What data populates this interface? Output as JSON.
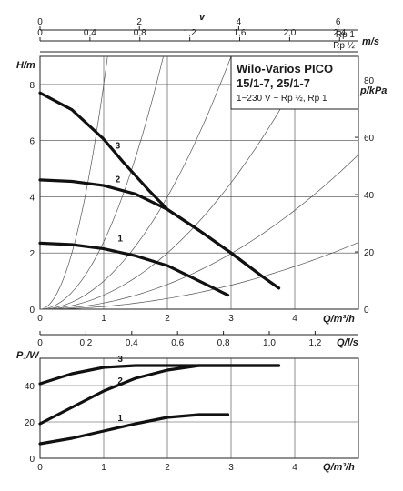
{
  "chart_data": [
    {
      "type": "line",
      "id": "head",
      "title": "Wilo-Varios PICO",
      "title_line2": "15/1-7, 25/1-7",
      "subtitle": "1~230 V ~ Rp ½, Rp 1",
      "xlabel": "Q/m³/h",
      "ylabel": "H/m",
      "ylabel_right": "p/kPa",
      "xlim": [
        0,
        5
      ],
      "ylim": [
        0,
        9
      ],
      "x_ticks": [
        "0",
        "1",
        "2",
        "3",
        "4"
      ],
      "y_ticks": [
        "0",
        "2",
        "4",
        "6",
        "8"
      ],
      "y_right_ticks": [
        "0",
        "20",
        "40",
        "60",
        "80"
      ],
      "grid": true,
      "series": [
        {
          "name": "1",
          "x": [
            0,
            0.5,
            1.0,
            1.5,
            2.0,
            2.5,
            2.95
          ],
          "y": [
            2.35,
            2.3,
            2.15,
            1.9,
            1.55,
            1.0,
            0.5
          ]
        },
        {
          "name": "2",
          "x": [
            0,
            0.5,
            1.0,
            1.5,
            2.0,
            2.5,
            3.0,
            3.5,
            3.75
          ],
          "y": [
            4.6,
            4.55,
            4.4,
            4.1,
            3.55,
            2.8,
            2.0,
            1.15,
            0.75
          ]
        },
        {
          "name": "3",
          "x": [
            0,
            0.5,
            1.0,
            1.3,
            1.7,
            2.0,
            2.5,
            3.0,
            3.5,
            3.75
          ],
          "y": [
            7.7,
            7.1,
            6.05,
            5.25,
            4.25,
            3.55,
            2.8,
            2.0,
            1.15,
            0.75
          ]
        }
      ],
      "system_curve_coefficients": [
        8.0,
        2.4,
        1.0,
        0.5,
        0.22,
        0.095
      ]
    },
    {
      "type": "line",
      "id": "power",
      "xlabel": "Q/m³/h",
      "ylabel": "P₁/W",
      "xlim": [
        0,
        5
      ],
      "ylim": [
        0,
        55
      ],
      "x_ticks": [
        "0",
        "1",
        "2",
        "3",
        "4"
      ],
      "y_ticks": [
        "0",
        "20",
        "40"
      ],
      "grid": true,
      "series": [
        {
          "name": "1",
          "x": [
            0,
            0.5,
            1.0,
            1.5,
            2.0,
            2.5,
            2.95
          ],
          "y": [
            8,
            11,
            15,
            19,
            22.5,
            24,
            24
          ]
        },
        {
          "name": "2",
          "x": [
            0,
            0.5,
            1.0,
            1.5,
            2.0,
            2.5,
            3.0,
            3.75
          ],
          "y": [
            19,
            28,
            37,
            44,
            48.5,
            51,
            51,
            51
          ]
        },
        {
          "name": "3",
          "x": [
            0,
            0.5,
            1.0,
            1.5,
            2.0,
            2.5,
            3.75
          ],
          "y": [
            41,
            46.5,
            50,
            51,
            51,
            51,
            51
          ]
        }
      ]
    }
  ],
  "top_axes": [
    {
      "label": "v",
      "unit": "",
      "ticks": [
        "0",
        "2",
        "4",
        "6"
      ],
      "values": [
        0,
        2,
        4,
        6
      ],
      "scale": 0.78
    },
    {
      "label": "",
      "unit": "m/s",
      "end_label": "Rp 1",
      "ticks": [
        "0",
        "0,4",
        "0,8",
        "1,2",
        "1,6",
        "2,0",
        "2,4"
      ],
      "values": [
        0,
        0.4,
        0.8,
        1.2,
        1.6,
        2.0,
        2.4
      ],
      "scale": 1.96
    },
    {
      "label": "",
      "unit": "",
      "end_label": "Rp ½",
      "ticks": [],
      "values": [],
      "scale": 1.96
    }
  ],
  "ls_axis": {
    "unit": "Q/l/s",
    "ticks": [
      "0",
      "0,2",
      "0,4",
      "0,6",
      "0,8",
      "1,0",
      "1,2"
    ],
    "values": [
      0,
      0.2,
      0.4,
      0.6,
      0.8,
      1.0,
      1.2
    ]
  }
}
